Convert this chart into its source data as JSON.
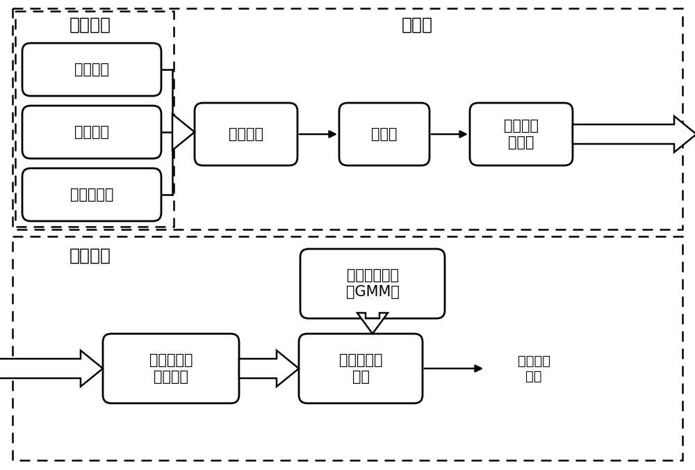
{
  "bg_color": "#ffffff",
  "text_color": "#000000",
  "section_top_label": "预处理",
  "section_bottom_label": "障碍检测",
  "section_input_label": "数据输入",
  "input_boxes": [
    {
      "label": "彩色图像"
    },
    {
      "label": "三维点云"
    },
    {
      "label": "近红外图像"
    }
  ],
  "top_flow_boxes": [
    {
      "label": "多谱点云"
    },
    {
      "label": "栅格化"
    },
    {
      "label": "红外光强\n归一化"
    }
  ],
  "bottom_flow_boxes": [
    {
      "label": "栅格内统计\n特征计算"
    },
    {
      "label": "植被分类及\n过滤"
    }
  ],
  "gmm_box_label": "混合高斯模型\n（GMM）",
  "output_label": "障碍信息\n输出",
  "font_size_section": 18,
  "font_size_box": 15,
  "font_size_output": 14
}
